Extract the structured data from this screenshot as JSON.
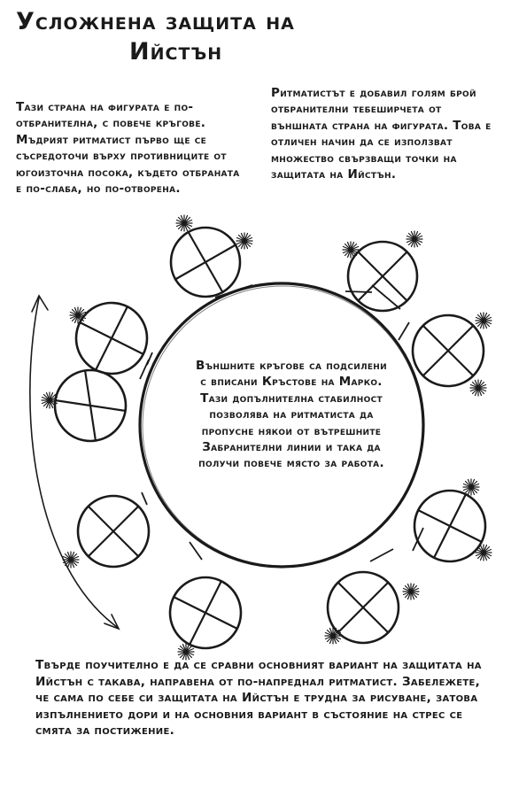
{
  "title": {
    "line1": "Усложнена защита на",
    "line2": "Ийстън"
  },
  "notes": {
    "left": "Тази страна на фигурата е по-отбранителна, с повече кръгове. Мъдрият ритматист първо ще се съсредоточи върху противниците от югоизточна посока, където отбраната е по-слаба, но по-отворена.",
    "right": "Ритматистът е добавил голям брой отбранителни тебеширчета от външната страна на фигурата. Това е отличен начин да се използват множество свързващи точки на защитата на Ийстън.",
    "center": "Външните кръгове са подсилени с вписани Кръстове на Марко. Тази допълнителна стабилност позволява на ритматиста да пропусне някои от вътрешните Забранителни линии и така да получи повече място за работа.",
    "bottom": "Твърде поучително е да се сравни основният вариант на защитата на Ийстън с такава, направена от по-напреднал ритматист. Забележете, че сама по себе си защитата на Ийстън е трудна за рисуване, затова изпълнението дори и на основния вариант в състояние на стрес се смята за постижение."
  },
  "colors": {
    "ink": "#1a1a1a"
  }
}
